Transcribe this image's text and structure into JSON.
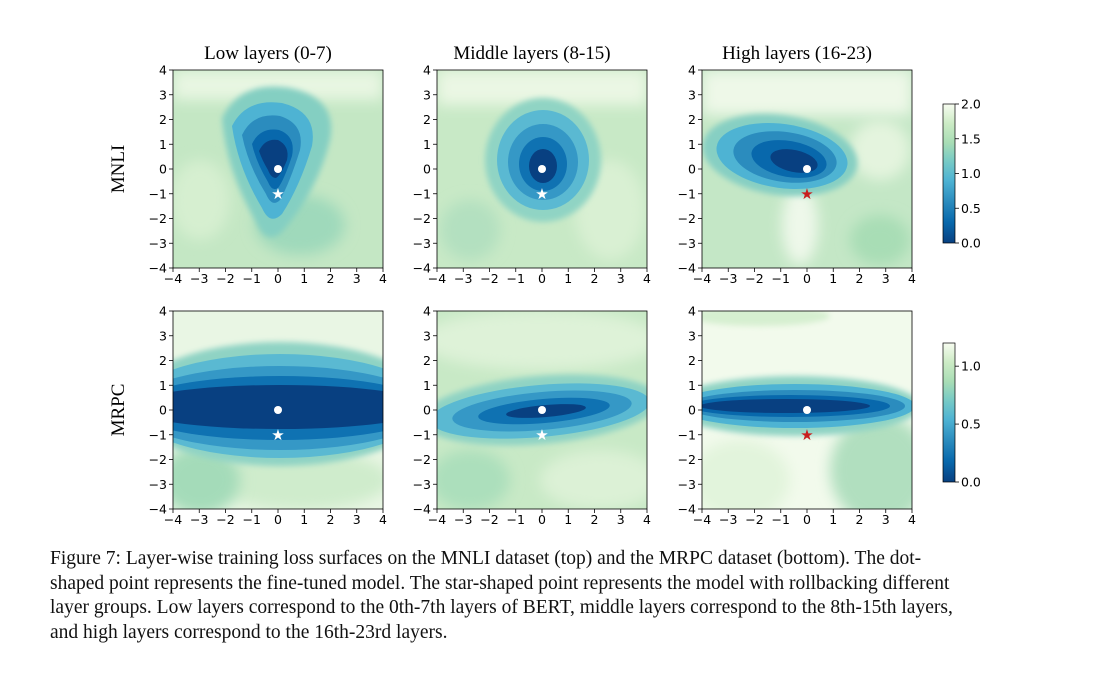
{
  "chart_data": {
    "type": "heatmap",
    "layout": "2x3 grid",
    "column_titles": [
      "Low layers (0-7)",
      "Middle layers (8-15)",
      "High layers (16-23)"
    ],
    "row_labels": [
      "MNLI",
      "MRPC"
    ],
    "axis_range": [
      -4,
      4
    ],
    "ticks": [
      -4,
      -3,
      -2,
      -1,
      0,
      1,
      2,
      3,
      4
    ],
    "tick_labels": [
      "−4",
      "−3",
      "−2",
      "−1",
      "0",
      "1",
      "2",
      "3",
      "4"
    ],
    "colorbars": [
      {
        "row": "MNLI",
        "vmin": 0.0,
        "vmax": 2.0,
        "ticks": [
          0.0,
          0.5,
          1.0,
          1.5,
          2.0
        ],
        "tick_labels": [
          "0.0",
          "0.5",
          "1.0",
          "1.5",
          "2.0"
        ]
      },
      {
        "row": "MRPC",
        "vmin": 0.0,
        "vmax": 1.2,
        "ticks": [
          0.0,
          0.5,
          1.0
        ],
        "tick_labels": [
          "0.0",
          "0.5",
          "1.0"
        ]
      }
    ],
    "panels": [
      {
        "row": "MNLI",
        "column": "Low layers (0-7)",
        "dot": [
          0,
          0
        ],
        "star": [
          0,
          -1
        ],
        "star_color": "white"
      },
      {
        "row": "MNLI",
        "column": "Middle layers (8-15)",
        "dot": [
          0,
          0
        ],
        "star": [
          0,
          -1
        ],
        "star_color": "white"
      },
      {
        "row": "MNLI",
        "column": "High layers (16-23)",
        "dot": [
          0,
          0
        ],
        "star": [
          0,
          -1
        ],
        "star_color": "red"
      },
      {
        "row": "MRPC",
        "column": "Low layers (0-7)",
        "dot": [
          0,
          0
        ],
        "star": [
          0,
          -1
        ],
        "star_color": "white"
      },
      {
        "row": "MRPC",
        "column": "Middle layers (8-15)",
        "dot": [
          0,
          0
        ],
        "star": [
          0,
          -1
        ],
        "star_color": "white"
      },
      {
        "row": "MRPC",
        "column": "High layers (16-23)",
        "dot": [
          0,
          0
        ],
        "star": [
          0,
          -1
        ],
        "star_color": "red"
      }
    ],
    "colormap": "GnBu_r"
  },
  "caption": {
    "lines": [
      "Figure 7: Layer-wise training loss surfaces on the MNLI dataset (top) and the MRPC dataset (bottom). The dot-",
      "shaped point represents the fine-tuned model. The star-shaped point represents the model with rollbacking different",
      "layer groups. Low layers correspond to the 0th-7th layers of BERT, middle layers correspond to the 8th-15th layers,",
      "and high layers correspond to the 16th-23rd layers."
    ]
  }
}
